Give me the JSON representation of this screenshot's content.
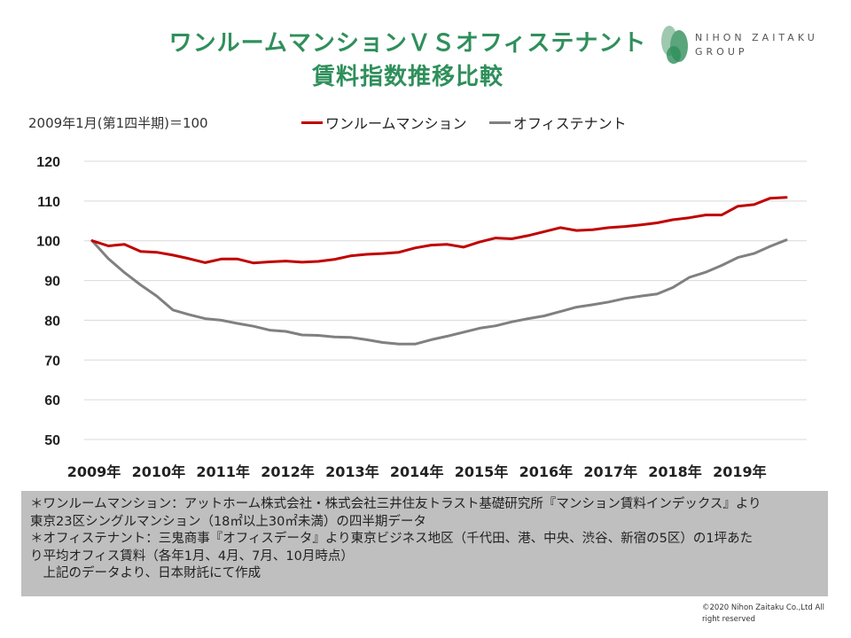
{
  "title": {
    "line1": "ワンルームマンションＶＳオフィステナント",
    "line2": "賃料指数推移比較"
  },
  "logo": {
    "line1": "NIHON ZAITAKU",
    "line2": "GROUP"
  },
  "base_label": "2009年1月(第1四半期)＝100",
  "colors": {
    "title": "#2f8f5b",
    "series_mansion": "#c00000",
    "series_office": "#808080",
    "note_bg": "#bfbfbf"
  },
  "chart_data": {
    "type": "line",
    "x_labels": [
      "2009年",
      "2010年",
      "2011年",
      "2012年",
      "2013年",
      "2014年",
      "2015年",
      "2016年",
      "2017年",
      "2018年",
      "2019年"
    ],
    "ylim": [
      50,
      120
    ],
    "yticks": [
      50,
      60,
      70,
      80,
      90,
      100,
      110,
      120
    ],
    "series": [
      {
        "name": "ワンルームマンション",
        "color": "#c00000",
        "values": [
          100,
          98.7,
          99.1,
          97.3,
          97.1,
          96.4,
          95.5,
          94.5,
          95.4,
          95.4,
          94.4,
          94.7,
          94.9,
          94.6,
          94.8,
          95.3,
          96.2,
          96.6,
          96.8,
          97.1,
          98.2,
          98.9,
          99.1,
          98.4,
          99.7,
          100.7,
          100.5,
          101.3,
          102.3,
          103.3,
          102.6,
          102.8,
          103.3,
          103.6,
          104.0,
          104.5,
          105.3,
          105.8,
          106.5,
          106.5,
          108.7,
          109.1,
          110.7,
          110.9
        ]
      },
      {
        "name": "オフィステナント",
        "color": "#808080",
        "values": [
          100,
          95.5,
          92.0,
          88.9,
          86.1,
          82.6,
          81.4,
          80.4,
          80.0,
          79.2,
          78.5,
          77.5,
          77.2,
          76.3,
          76.2,
          75.8,
          75.7,
          75.1,
          74.4,
          74.0,
          74.0,
          75.1,
          76.0,
          77.0,
          78.0,
          78.6,
          79.6,
          80.4,
          81.1,
          82.2,
          83.3,
          83.9,
          84.6,
          85.5,
          86.1,
          86.6,
          88.3,
          90.8,
          92.1,
          93.8,
          95.8,
          96.8,
          98.6,
          100.2
        ]
      }
    ]
  },
  "note": {
    "line1": "＊ワンルームマンション：アットホーム株式会社・株式会社三井住友トラスト基礎研究所『マンション賃料インデックス』より",
    "line2": "東京23区シングルマンション（18㎡以上30㎡未満）の四半期データ",
    "line3": "＊オフィステナント：三鬼商事『オフィスデータ』より東京ビジネス地区（千代田、港、中央、渋谷、新宿の5区）の1坪あた",
    "line4": "り平均オフィス賃料（各年1月、4月、7月、10月時点）",
    "line5": "　上記のデータより、日本財託にて作成"
  },
  "copyright": {
    "line1": "©2020 Nihon Zaitaku Co.,Ltd All",
    "line2": "right reserved"
  }
}
